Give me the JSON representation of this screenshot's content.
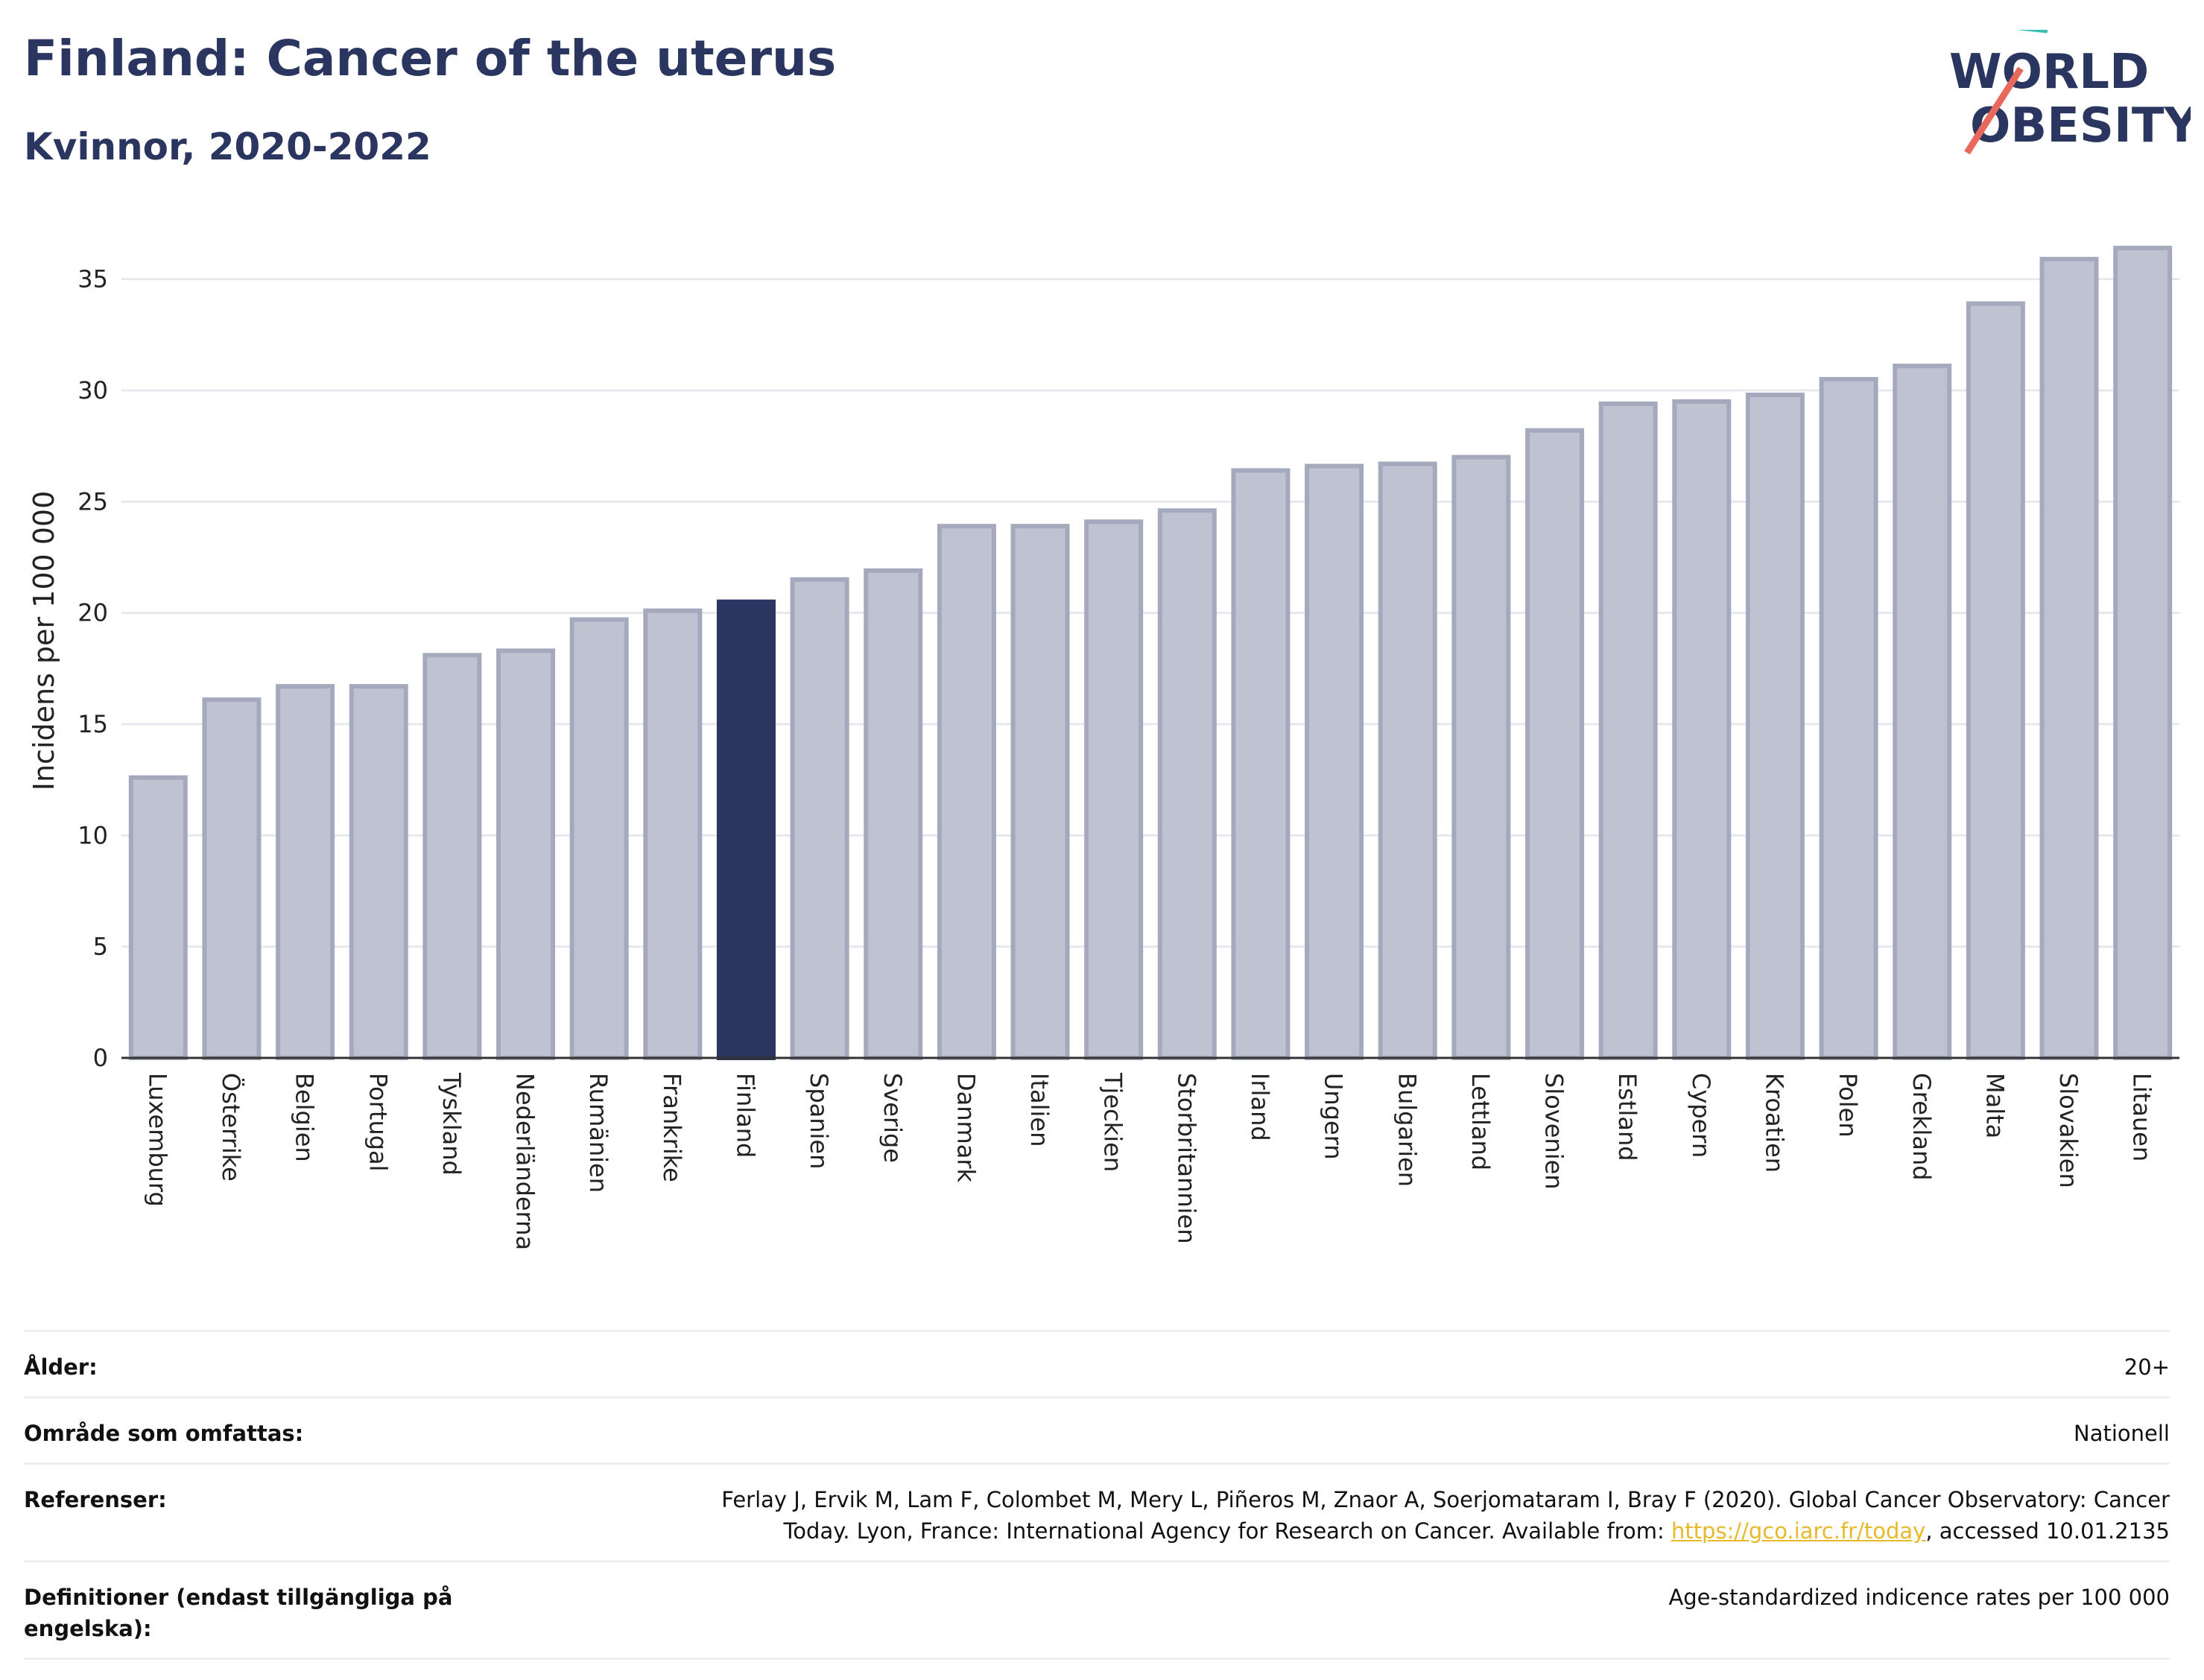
{
  "header": {
    "title": "Finland: Cancer of the uterus",
    "subtitle": "Kvinnor, 2020-2022",
    "logo_line1": "WORLD",
    "logo_line2": "OBESITY"
  },
  "chart_data": {
    "type": "bar",
    "title": "Finland: Cancer of the uterus",
    "subtitle": "Kvinnor, 2020-2022",
    "ylabel": "Incidens per 100 000",
    "xlabel": "",
    "ylim": [
      0,
      37.5
    ],
    "yticks": [
      0,
      5,
      10,
      15,
      20,
      25,
      30,
      35
    ],
    "grid": true,
    "highlight": "Finland",
    "colors": {
      "bar": "#bfc2d0",
      "bar_border": "#a4a9bd",
      "highlight": "#2a3560",
      "grid": "#e6e8ee"
    },
    "categories": [
      "Luxemburg",
      "Österrike",
      "Belgien",
      "Portugal",
      "Tyskland",
      "Nederländerna",
      "Rumänien",
      "Frankrike",
      "Finland",
      "Spanien",
      "Sverige",
      "Danmark",
      "Italien",
      "Tjeckien",
      "Storbritannien",
      "Irland",
      "Ungern",
      "Bulgarien",
      "Lettland",
      "Slovenien",
      "Estland",
      "Cypern",
      "Kroatien",
      "Polen",
      "Grekland",
      "Malta",
      "Slovakien",
      "Litauen"
    ],
    "values": [
      12.6,
      16.1,
      16.7,
      16.7,
      18.1,
      18.3,
      19.7,
      20.1,
      20.5,
      21.5,
      21.9,
      23.9,
      23.9,
      24.1,
      24.6,
      26.4,
      26.6,
      26.7,
      27.0,
      28.2,
      29.4,
      29.5,
      29.8,
      30.5,
      31.1,
      33.9,
      35.9,
      36.4
    ]
  },
  "meta": {
    "rows": [
      {
        "key": "Ålder:",
        "value": "20+"
      },
      {
        "key": "Område som omfattas:",
        "value": "Nationell"
      },
      {
        "key": "Referenser:",
        "value_line1": "Ferlay J, Ervik M, Lam F, Colombet M, Mery L, Piñeros M, Znaor A, Soerjomataram I, Bray F (2020). Global Cancer Observatory: Cancer",
        "value_line2_pre": "Today. Lyon, France: International Agency for Research on Cancer. Available from: ",
        "link": "https://gco.iarc.fr/today",
        "value_line2_post": ", accessed 10.01.2135"
      },
      {
        "key": "Definitioner (endast tillgängliga på engelska):",
        "value": "Age-standardized indicence rates per 100 000"
      }
    ]
  }
}
